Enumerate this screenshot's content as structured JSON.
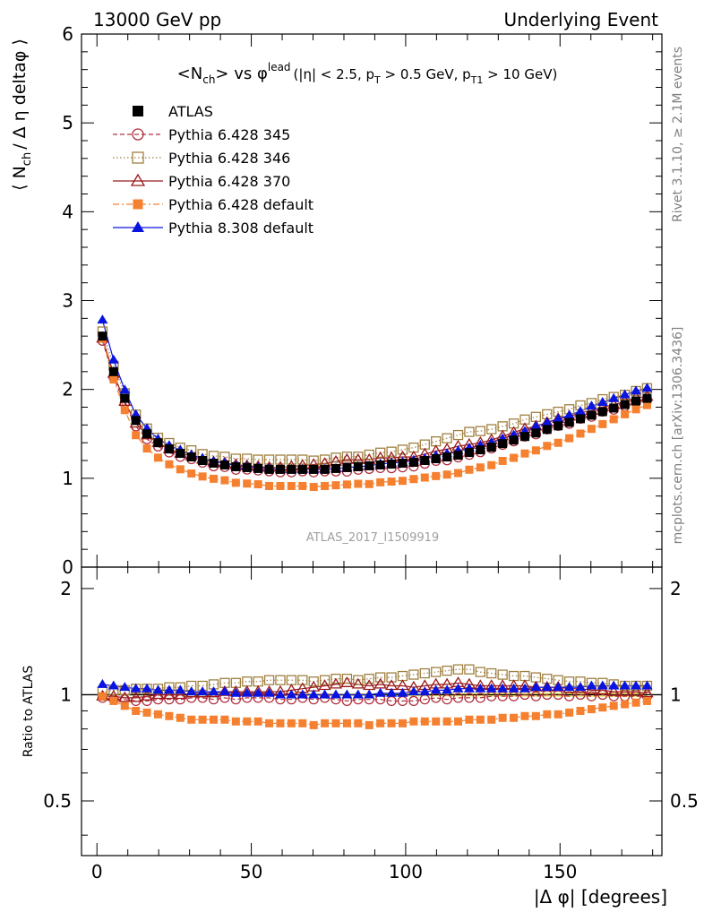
{
  "header": {
    "left_label": "13000 GeV pp",
    "right_label": "Underlying Event"
  },
  "side_labels": {
    "rivet": "Rivet 3.1.10, ≥ 2.1M events",
    "mcplots": "mcplots.cern.ch [arXiv:1306.3436]"
  },
  "chart_data": {
    "type": "scatter",
    "title": {
      "main": "<N",
      "main_sub": "ch",
      "main_rest": "> vs φ",
      "main_sup": "lead",
      "cut_open": "(|η| < 2.5, p",
      "cut_sub1": "T",
      "cut_mid": " > 0.5 GeV, p",
      "cut_sub2": "T1",
      "cut_close": " > 10 GeV)"
    },
    "analysis_id": "ATLAS_2017_I1509919",
    "xlabel": "|Δ φ| [degrees]",
    "ylabel": {
      "open": "⟨ N",
      "sub": "ch",
      "rest": "/ Δ η deltaφ ⟩"
    },
    "ratio_ylabel": "Ratio to ATLAS",
    "xlim": [
      -5,
      183
    ],
    "ylim": [
      0,
      6
    ],
    "ratio_ylim": [
      0.35,
      2.3
    ],
    "xticks": [
      "0",
      "50",
      "100",
      "150"
    ],
    "yticks": [
      "0",
      "1",
      "2",
      "3",
      "4",
      "5",
      "6"
    ],
    "ratio_yticks": [
      "0.5",
      "1",
      "2"
    ],
    "legend_position": "top-left",
    "x": [
      1.8,
      5.4,
      9.0,
      12.6,
      16.2,
      19.8,
      23.4,
      27.0,
      30.6,
      34.2,
      37.8,
      41.4,
      45.0,
      48.6,
      52.2,
      55.8,
      59.4,
      63.0,
      66.6,
      70.2,
      73.8,
      77.4,
      81.0,
      84.6,
      88.2,
      91.8,
      95.4,
      99.0,
      102.6,
      106.2,
      109.8,
      113.4,
      117.0,
      120.6,
      124.2,
      127.8,
      131.4,
      135.0,
      138.6,
      142.2,
      145.8,
      149.4,
      153.0,
      156.6,
      160.2,
      163.8,
      167.4,
      171.0,
      174.6,
      178.2
    ],
    "data": {
      "name": "ATLAS",
      "values": [
        2.6,
        2.2,
        1.9,
        1.65,
        1.5,
        1.4,
        1.33,
        1.28,
        1.24,
        1.2,
        1.17,
        1.15,
        1.13,
        1.12,
        1.11,
        1.1,
        1.1,
        1.1,
        1.1,
        1.1,
        1.1,
        1.11,
        1.12,
        1.13,
        1.14,
        1.15,
        1.16,
        1.17,
        1.18,
        1.2,
        1.22,
        1.24,
        1.26,
        1.29,
        1.32,
        1.35,
        1.39,
        1.43,
        1.47,
        1.51,
        1.55,
        1.59,
        1.63,
        1.67,
        1.71,
        1.75,
        1.79,
        1.83,
        1.87,
        1.9
      ]
    },
    "series": [
      {
        "name": "Pythia 6.428 345",
        "color": "#b03040",
        "marker": "circle-open",
        "line": "dashed",
        "ratio": [
          0.98,
          0.97,
          0.97,
          0.96,
          0.96,
          0.97,
          0.97,
          0.97,
          0.98,
          0.98,
          0.97,
          0.98,
          0.97,
          0.98,
          0.98,
          0.98,
          0.97,
          0.97,
          0.98,
          0.97,
          0.98,
          0.97,
          0.96,
          0.97,
          0.97,
          0.97,
          0.96,
          0.96,
          0.96,
          0.97,
          0.98,
          0.97,
          0.98,
          0.98,
          0.98,
          0.99,
          0.99,
          0.99,
          1.0,
          0.99,
          1.0,
          1.0,
          0.99,
          1.0,
          0.99,
          1.0,
          0.99,
          0.99,
          0.99,
          0.99
        ]
      },
      {
        "name": "Pythia 6.428 346",
        "color": "#a08040",
        "marker": "square-open",
        "line": "dotted",
        "ratio": [
          1.02,
          1.03,
          1.03,
          1.04,
          1.04,
          1.04,
          1.05,
          1.05,
          1.06,
          1.06,
          1.07,
          1.08,
          1.08,
          1.09,
          1.09,
          1.1,
          1.1,
          1.1,
          1.1,
          1.09,
          1.1,
          1.11,
          1.11,
          1.1,
          1.11,
          1.12,
          1.12,
          1.13,
          1.14,
          1.15,
          1.16,
          1.17,
          1.18,
          1.18,
          1.16,
          1.15,
          1.14,
          1.13,
          1.13,
          1.12,
          1.11,
          1.1,
          1.09,
          1.09,
          1.08,
          1.08,
          1.07,
          1.06,
          1.06,
          1.06
        ]
      },
      {
        "name": "Pythia 6.428 370",
        "color": "#9a1a1a",
        "marker": "triangle-open",
        "line": "solid",
        "ratio": [
          0.99,
          0.99,
          0.98,
          0.98,
          0.99,
          1.0,
          1.0,
          1.0,
          1.01,
          1.01,
          1.01,
          1.02,
          1.02,
          1.02,
          1.02,
          1.02,
          1.02,
          1.03,
          1.04,
          1.05,
          1.06,
          1.07,
          1.08,
          1.07,
          1.06,
          1.07,
          1.06,
          1.06,
          1.05,
          1.06,
          1.07,
          1.07,
          1.08,
          1.07,
          1.06,
          1.06,
          1.06,
          1.06,
          1.06,
          1.05,
          1.05,
          1.05,
          1.04,
          1.04,
          1.03,
          1.03,
          1.02,
          1.02,
          1.02,
          1.01
        ]
      },
      {
        "name": "Pythia 6.428 default",
        "color": "#f58030",
        "marker": "square-filled",
        "line": "dashdot",
        "ratio": [
          0.99,
          0.96,
          0.93,
          0.9,
          0.89,
          0.88,
          0.87,
          0.86,
          0.85,
          0.85,
          0.85,
          0.85,
          0.84,
          0.84,
          0.84,
          0.83,
          0.83,
          0.83,
          0.83,
          0.82,
          0.83,
          0.83,
          0.83,
          0.83,
          0.82,
          0.83,
          0.83,
          0.83,
          0.84,
          0.84,
          0.84,
          0.84,
          0.84,
          0.85,
          0.85,
          0.85,
          0.86,
          0.86,
          0.87,
          0.87,
          0.88,
          0.88,
          0.89,
          0.9,
          0.91,
          0.92,
          0.93,
          0.94,
          0.95,
          0.96
        ]
      },
      {
        "name": "Pythia 8.308 default",
        "color": "#0a14e0",
        "marker": "triangle-filled",
        "line": "solid",
        "ratio": [
          1.07,
          1.06,
          1.05,
          1.04,
          1.04,
          1.03,
          1.03,
          1.03,
          1.02,
          1.02,
          1.02,
          1.02,
          1.01,
          1.01,
          1.01,
          1.01,
          1.0,
          1.0,
          1.0,
          1.0,
          1.0,
          1.0,
          1.0,
          1.0,
          1.0,
          1.01,
          1.01,
          1.01,
          1.02,
          1.02,
          1.03,
          1.03,
          1.04,
          1.04,
          1.04,
          1.04,
          1.04,
          1.04,
          1.04,
          1.05,
          1.05,
          1.05,
          1.05,
          1.05,
          1.06,
          1.06,
          1.06,
          1.06,
          1.06,
          1.06
        ]
      }
    ]
  }
}
